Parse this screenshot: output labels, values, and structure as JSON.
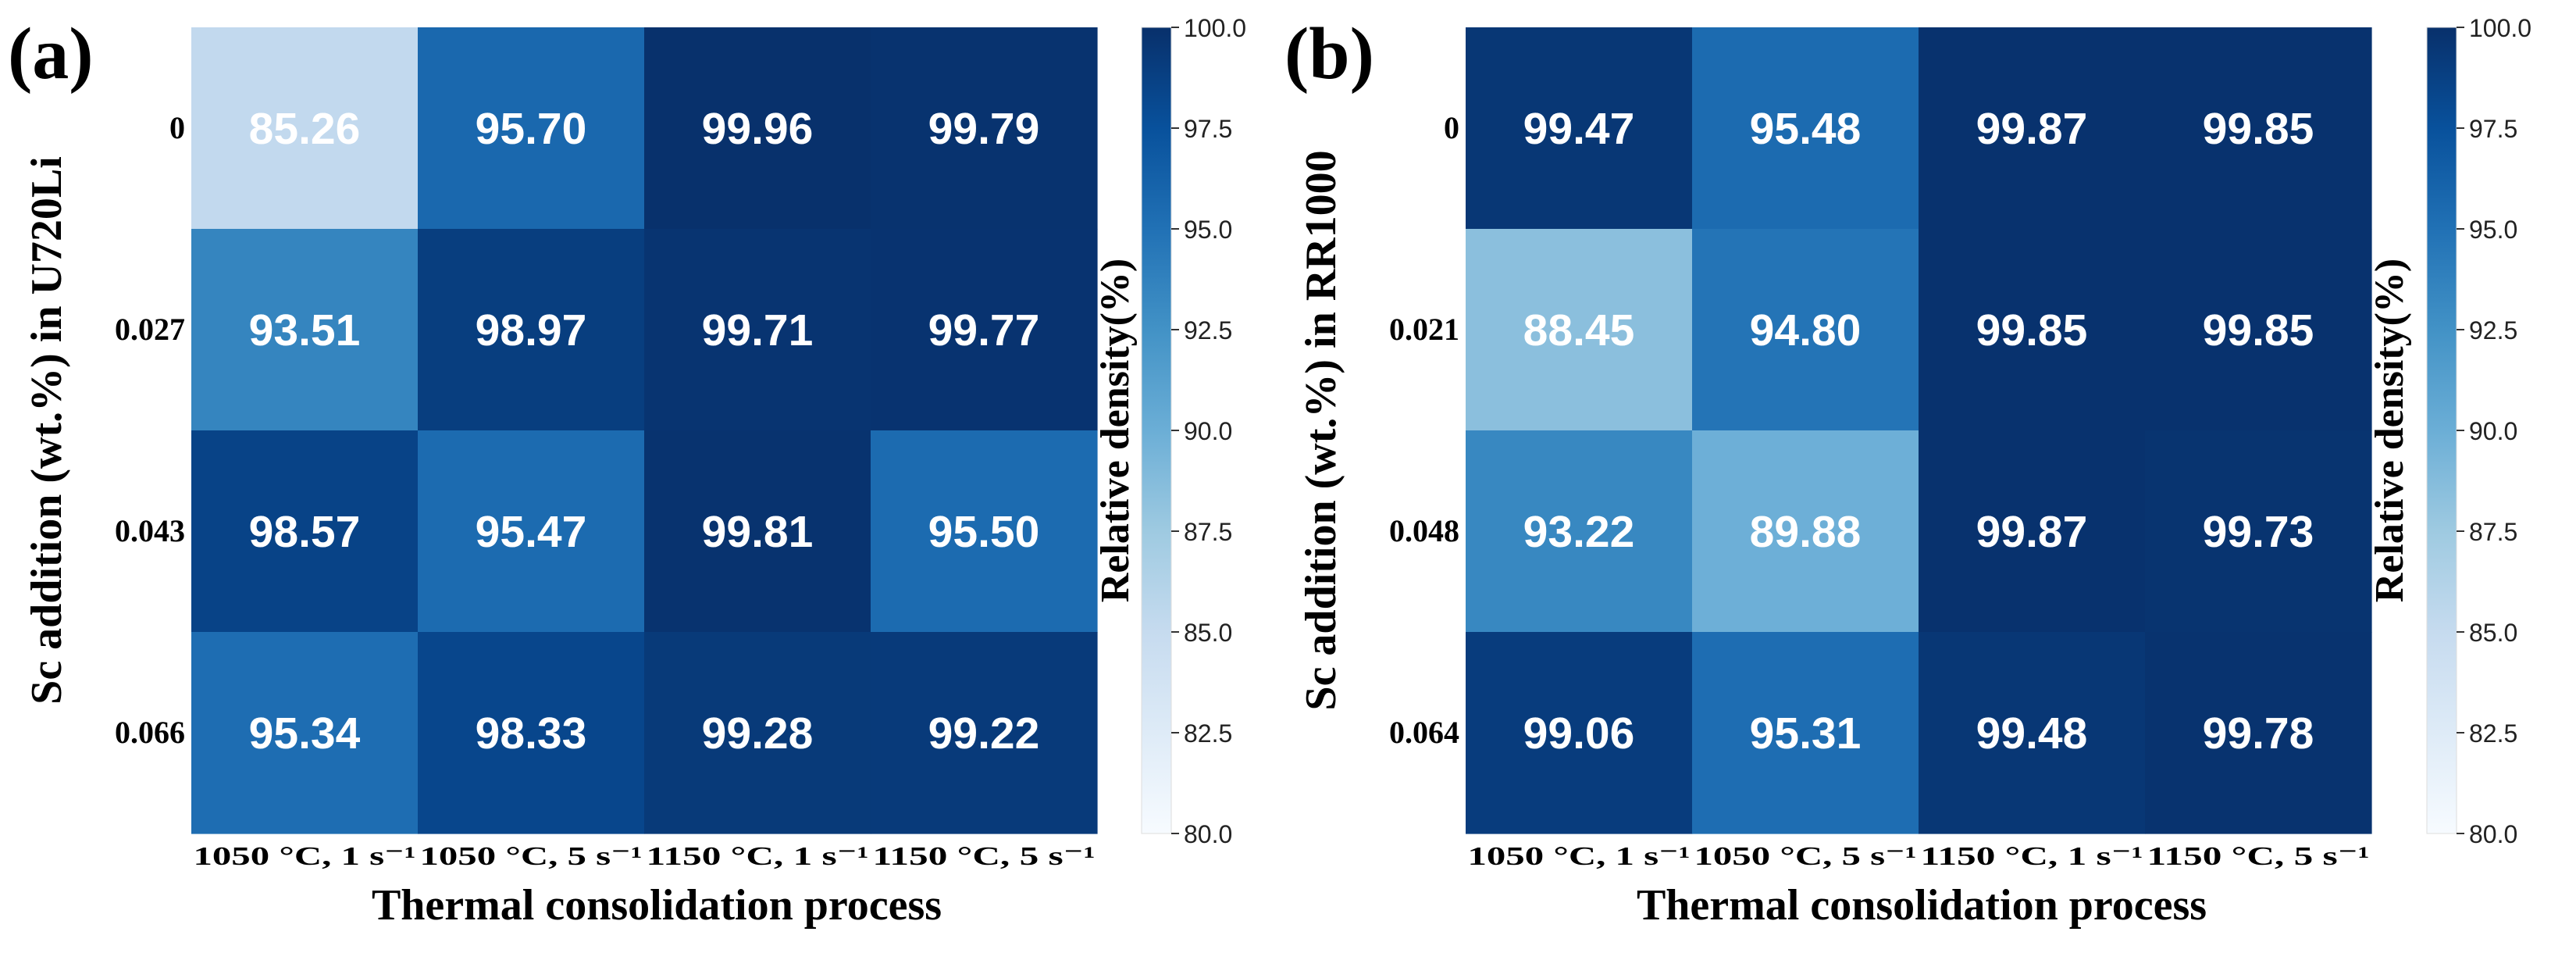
{
  "colormap": {
    "name": "Blues",
    "stops": [
      "#f7fbff",
      "#deebf7",
      "#c6dbef",
      "#9ecae1",
      "#6baed6",
      "#4292c6",
      "#2171b5",
      "#08519c",
      "#08306b"
    ],
    "text_light": "#ffffff",
    "text_dark": "#08306b"
  },
  "chart_data": [
    {
      "type": "heatmap",
      "panel_label": "(a)",
      "title": "",
      "xlabel": "Thermal consolidation process",
      "ylabel": "Sc addition (wt.%) in U720Li",
      "x_categories": [
        "1050 °C, 1 s⁻¹",
        "1050 °C, 5 s⁻¹",
        "1150 °C, 1 s⁻¹",
        "1150 °C, 5 s⁻¹"
      ],
      "y_categories": [
        "0",
        "0.027",
        "0.043",
        "0.066"
      ],
      "values": [
        [
          85.26,
          95.7,
          99.96,
          99.79
        ],
        [
          93.51,
          98.97,
          99.71,
          99.77
        ],
        [
          98.57,
          95.47,
          99.81,
          95.5
        ],
        [
          95.34,
          98.33,
          99.28,
          99.22
        ]
      ],
      "value_labels": [
        [
          "85.26",
          "95.70",
          "99.96",
          "99.79"
        ],
        [
          "93.51",
          "98.97",
          "99.71",
          "99.77"
        ],
        [
          "98.57",
          "95.47",
          "99.81",
          "95.50"
        ],
        [
          "95.34",
          "98.33",
          "99.28",
          "99.22"
        ]
      ],
      "colorbar": {
        "label": "Relative density(%)",
        "vmin": 80,
        "vmax": 100,
        "ticks": [
          80,
          82.5,
          85,
          87.5,
          90,
          92.5,
          95,
          97.5,
          100
        ],
        "tick_labels": [
          "80.0",
          "82.5",
          "85.0",
          "87.5",
          "90.0",
          "92.5",
          "95.0",
          "97.5",
          "100.0"
        ]
      }
    },
    {
      "type": "heatmap",
      "panel_label": "(b)",
      "title": "",
      "xlabel": "Thermal consolidation process",
      "ylabel": "Sc addition (wt.%) in RR1000",
      "x_categories": [
        "1050 °C, 1 s⁻¹",
        "1050 °C, 5 s⁻¹",
        "1150 °C, 1 s⁻¹",
        "1150 °C, 5 s⁻¹"
      ],
      "y_categories": [
        "0",
        "0.021",
        "0.048",
        "0.064"
      ],
      "values": [
        [
          99.47,
          95.48,
          99.87,
          99.85
        ],
        [
          88.45,
          94.8,
          99.85,
          99.85
        ],
        [
          93.22,
          89.88,
          99.87,
          99.73
        ],
        [
          99.06,
          95.31,
          99.48,
          99.78
        ]
      ],
      "value_labels": [
        [
          "99.47",
          "95.48",
          "99.87",
          "99.85"
        ],
        [
          "88.45",
          "94.80",
          "99.85",
          "99.85"
        ],
        [
          "93.22",
          "89.88",
          "99.87",
          "99.73"
        ],
        [
          "99.06",
          "95.31",
          "99.48",
          "99.78"
        ]
      ],
      "colorbar": {
        "label": "Relative density(%)",
        "vmin": 80,
        "vmax": 100,
        "ticks": [
          80,
          82.5,
          85,
          87.5,
          90,
          92.5,
          95,
          97.5,
          100
        ],
        "tick_labels": [
          "80.0",
          "82.5",
          "85.0",
          "87.5",
          "90.0",
          "92.5",
          "95.0",
          "97.5",
          "100.0"
        ]
      }
    }
  ]
}
